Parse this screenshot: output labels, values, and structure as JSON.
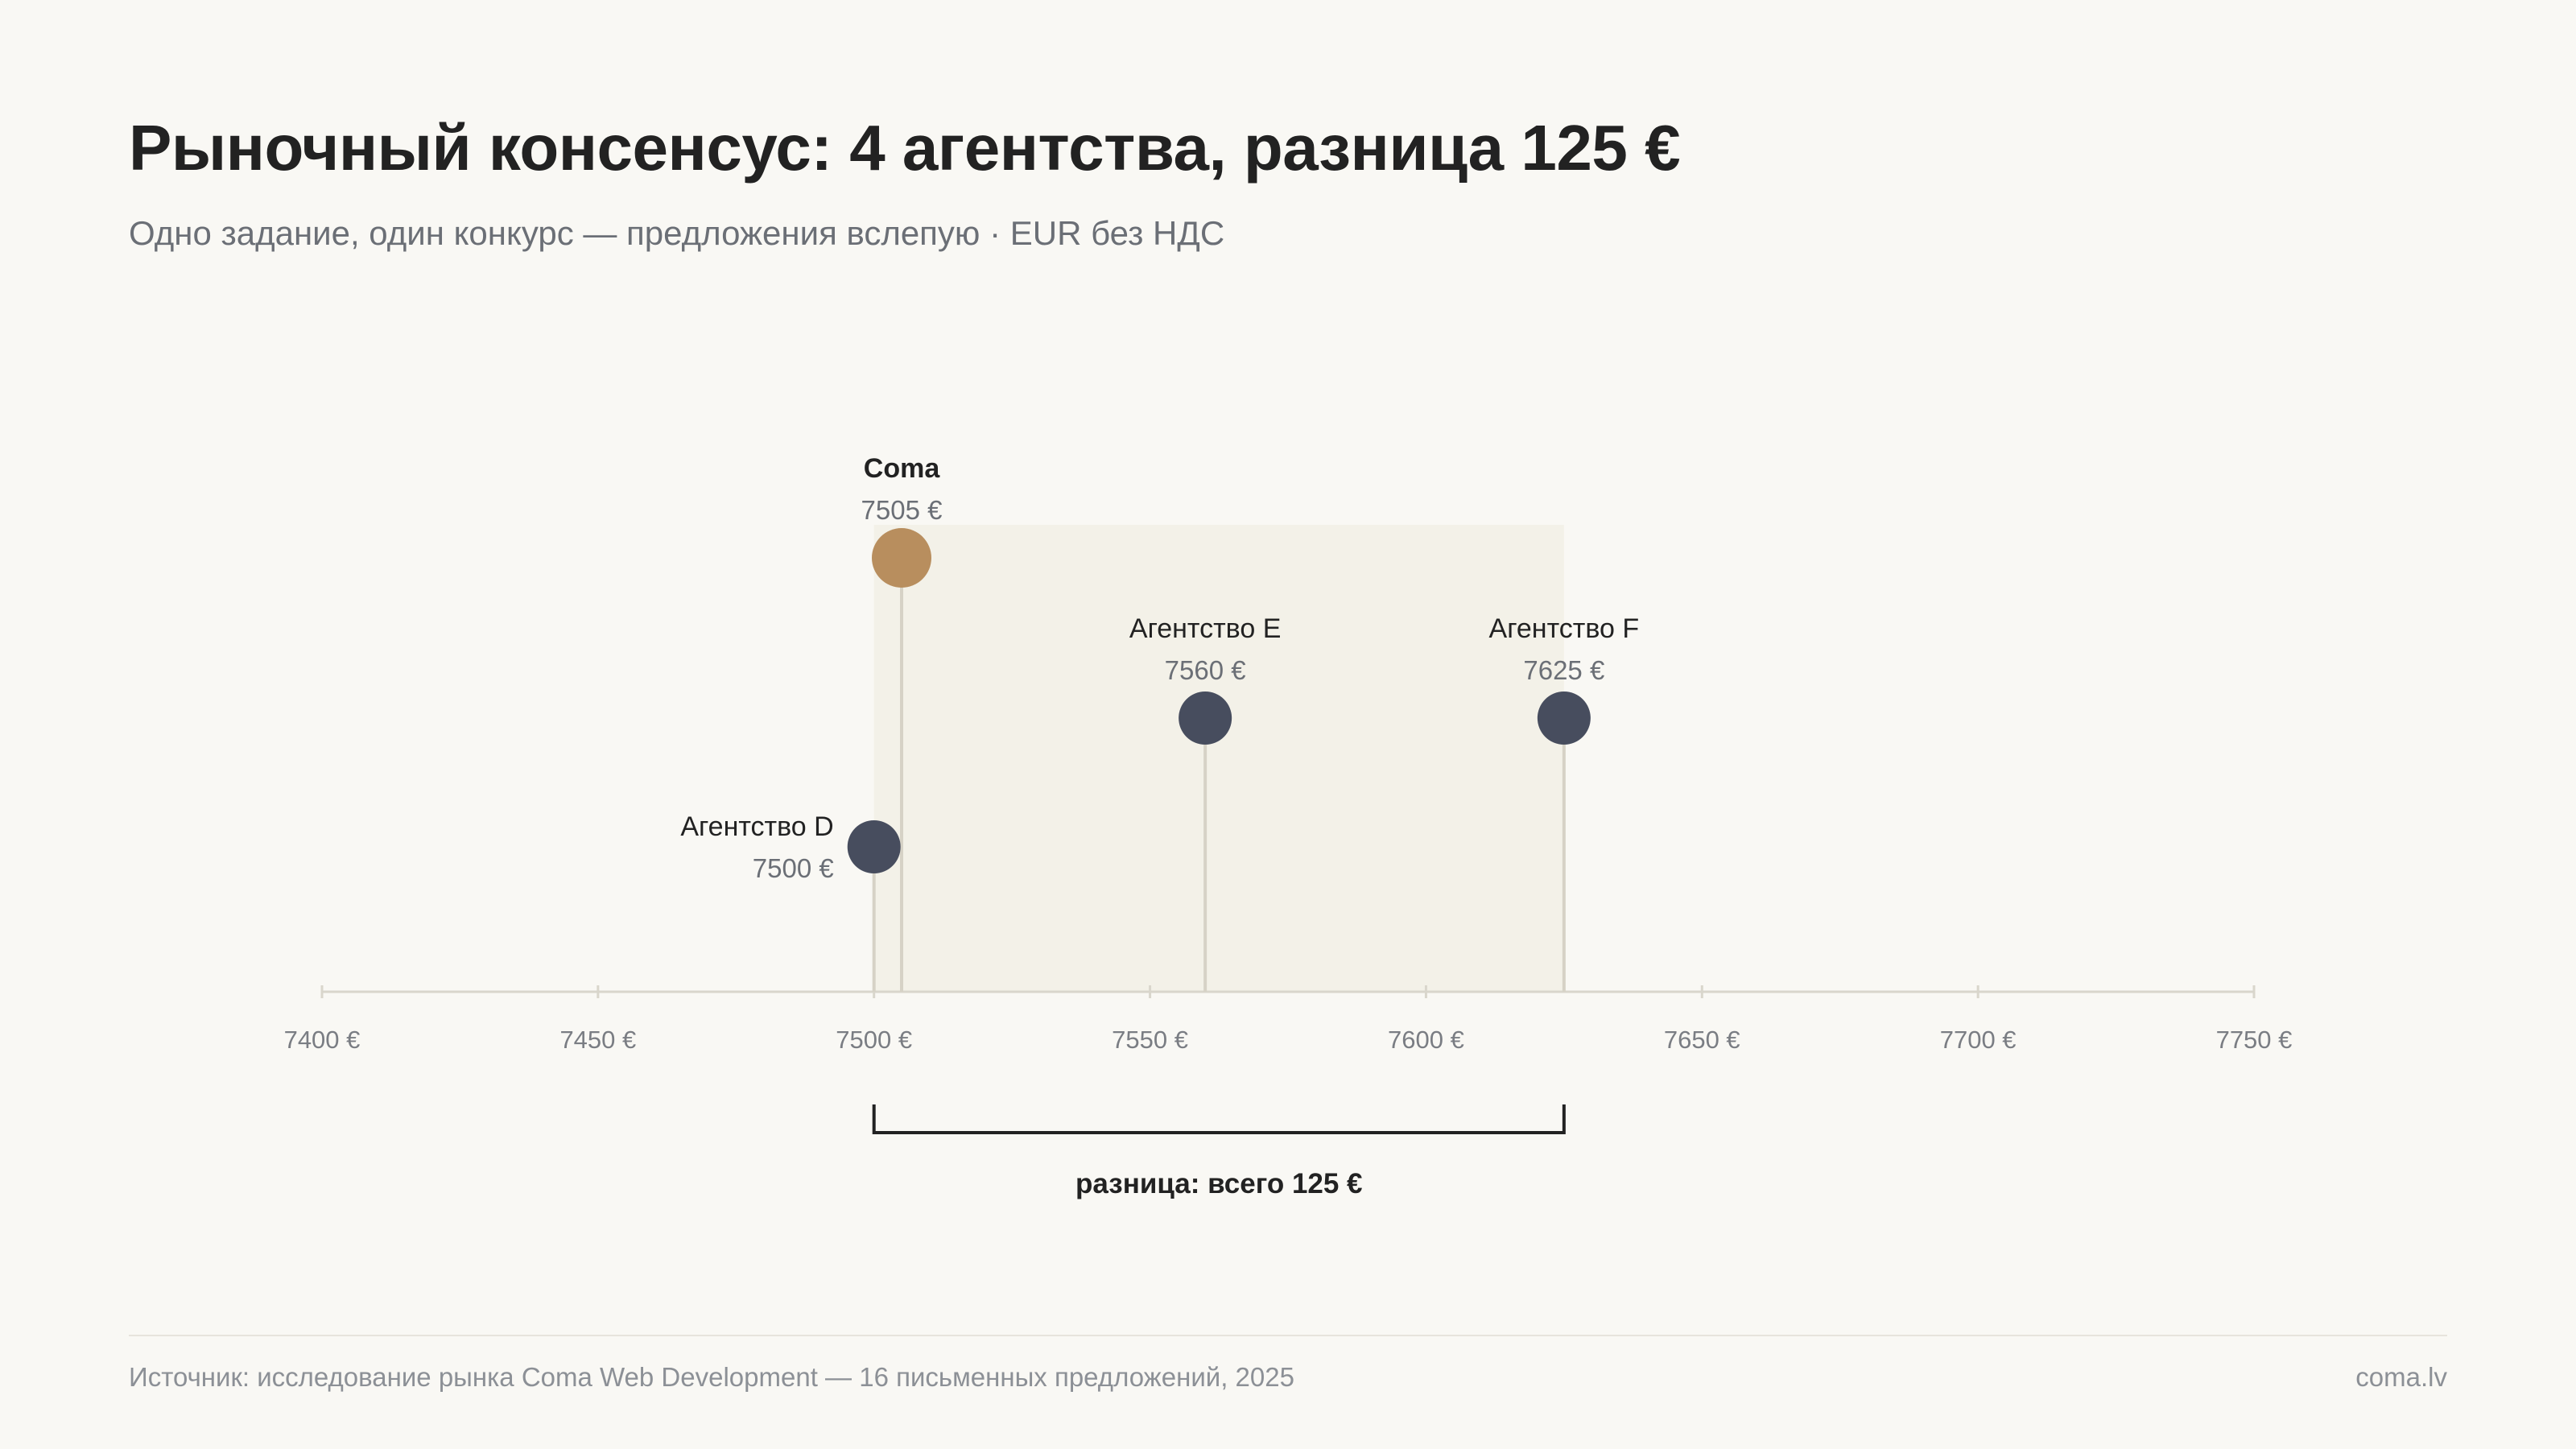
{
  "header": {
    "title": "Рыночный консенсус: 4 агентства, разница 125 €",
    "subtitle": "Одно задание, один конкурс — предложения вслепую · EUR без НДС"
  },
  "chart_data": {
    "type": "scatter",
    "xlim": [
      7400,
      7750
    ],
    "x_ticks": [
      7400,
      7450,
      7500,
      7550,
      7600,
      7650,
      7700,
      7750
    ],
    "x_tick_labels": [
      "7400 €",
      "7450 €",
      "7500 €",
      "7550 €",
      "7600 €",
      "7650 €",
      "7700 €",
      "7750 €"
    ],
    "points": [
      {
        "name": "Coma",
        "value": 7505,
        "value_label": "7505 €",
        "color": "#b88e5e",
        "highlight": true
      },
      {
        "name": "Агентство D",
        "value": 7500,
        "value_label": "7500 €",
        "color": "#474d5e",
        "highlight": false
      },
      {
        "name": "Агентство E",
        "value": 7560,
        "value_label": "7560 €",
        "color": "#474d5e",
        "highlight": false
      },
      {
        "name": "Агентство F",
        "value": 7625,
        "value_label": "7625 €",
        "color": "#474d5e",
        "highlight": false
      }
    ],
    "range": {
      "from": 7500,
      "to": 7625,
      "label": "разница: всего 125 €"
    },
    "grid": false
  },
  "footer": {
    "source": "Источник: исследование рынка Coma Web Development — 16 письменных предложений, 2025",
    "site": "coma.lv"
  },
  "colors": {
    "background": "#f9f8f4",
    "accent": "#b88e5e",
    "marker": "#474d5e",
    "band": "#f3f1e8"
  }
}
